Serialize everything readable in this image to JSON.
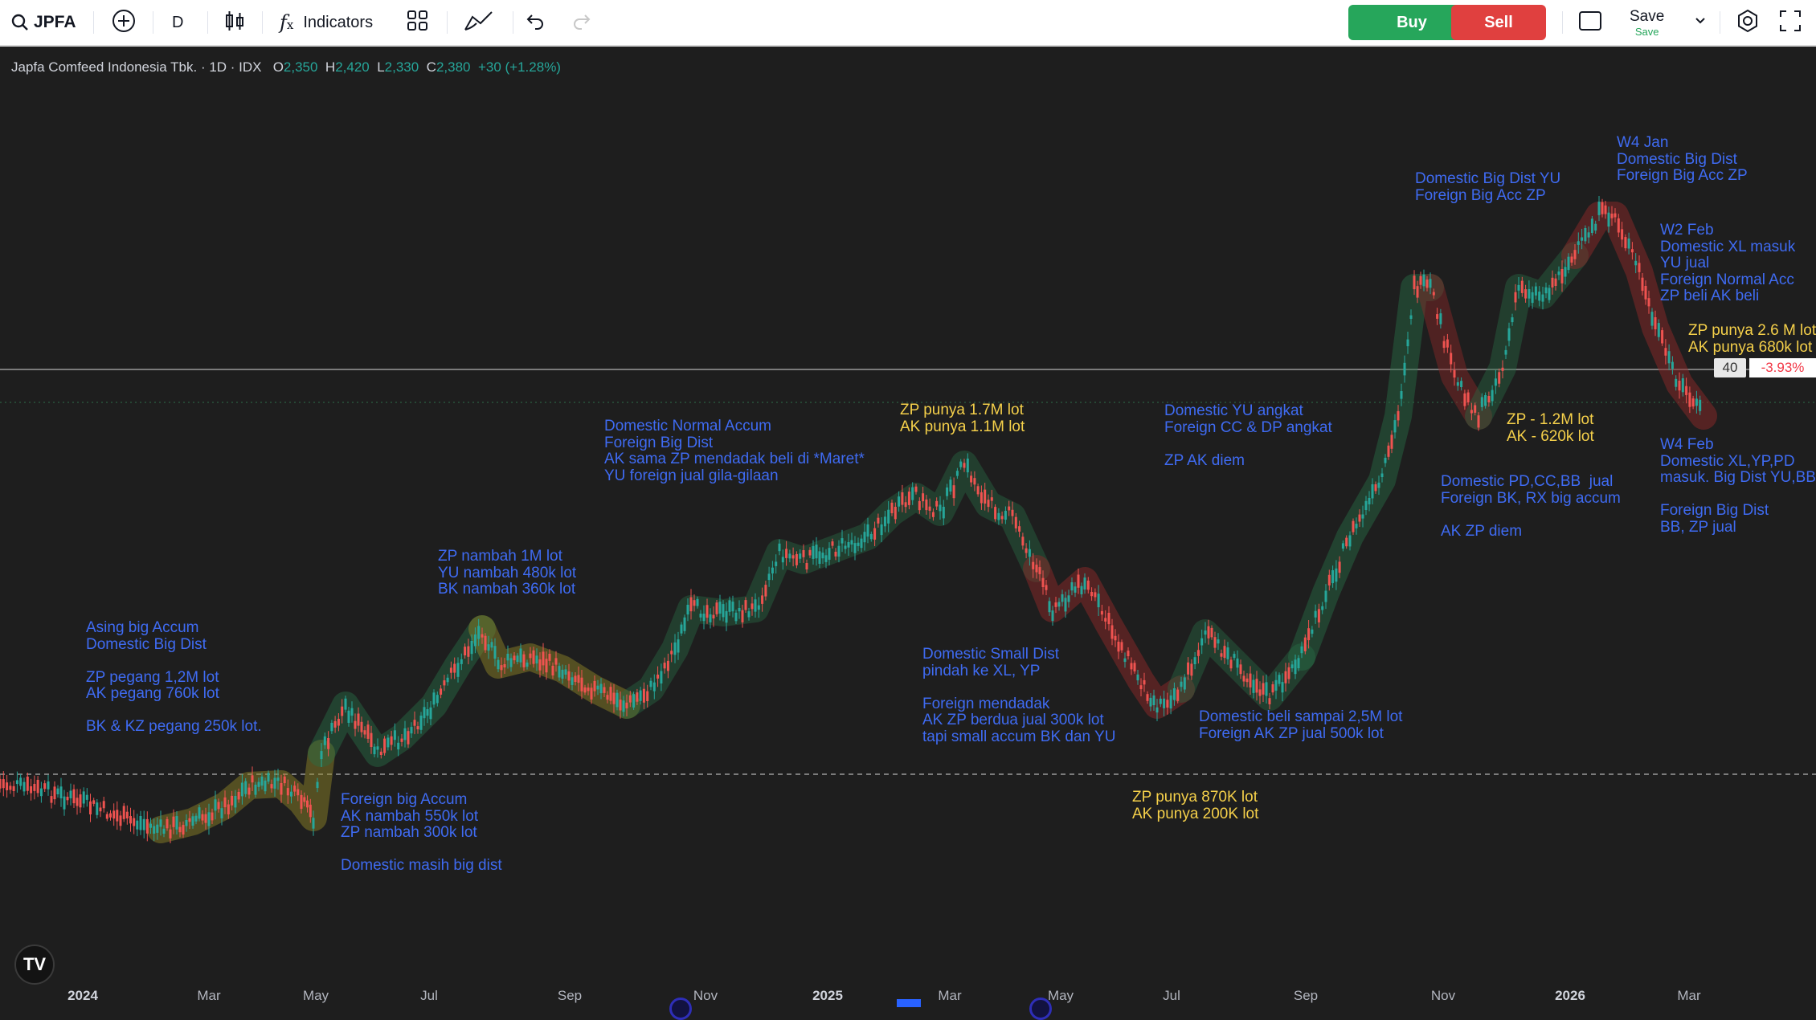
{
  "toolbar": {
    "symbol": "JPFA",
    "interval": "D",
    "indicators_label": "Indicators",
    "buy_label": "Buy",
    "sell_label": "Sell",
    "save_label": "Save",
    "save_sub": "Save",
    "icons": [
      "search-icon",
      "add-symbol-icon",
      "bar-style-icon",
      "fx-icon",
      "layout-icon",
      "drawing-icon",
      "undo-icon",
      "redo-icon",
      "layout-box-icon",
      "chevron-down-icon",
      "settings-icon",
      "fullscreen-icon"
    ],
    "colors": {
      "buy": "#26a65b",
      "sell": "#e0403f"
    }
  },
  "legend": {
    "title": "Japfa Comfeed Indonesia Tbk. · 1D · IDX",
    "o_label": "O",
    "o_value": "2,350",
    "h_label": "H",
    "h_value": "2,420",
    "l_label": "L",
    "l_value": "2,330",
    "c_label": "C",
    "c_value": "2,380",
    "change": "+30 (+1.28%)"
  },
  "price_line": {
    "tag": "40",
    "pct": "-3.93%"
  },
  "annotations": [
    {
      "text": "Asing big Accum\nDomestic Big Dist\n\nZP pegang 1,2M lot\nAK pegang 760k lot\n\nBK & KZ pegang 250k lot.",
      "color": "blue"
    },
    {
      "text": "Foreign big Accum\nAK nambah 550k lot\nZP nambah 300k lot\n\nDomestic masih big dist",
      "color": "blue"
    },
    {
      "text": "ZP nambah 1M lot\nYU nambah 480k lot\nBK nambah 360k lot",
      "color": "blue"
    },
    {
      "text": "Domestic Normal Accum\nForeign Big Dist\nAK sama ZP mendadak beli di *Maret*\nYU foreign jual gila-gilaan",
      "color": "blue"
    },
    {
      "text": "ZP punya 1.7M lot\nAK punya 1.1M lot",
      "color": "yellow"
    },
    {
      "text": "Domestic Small Dist\npindah ke XL, YP\n\nForeign mendadak\nAK ZP berdua jual 300k lot\ntapi small accum BK dan YU",
      "color": "blue"
    },
    {
      "text": "Domestic YU angkat\nForeign CC & DP angkat\n\nZP AK diem",
      "color": "blue"
    },
    {
      "text": "Domestic beli sampai 2,5M lot\nForeign AK ZP jual 500k lot",
      "color": "blue"
    },
    {
      "text": "ZP punya 870K lot\nAK punya 200K lot",
      "color": "yellow"
    },
    {
      "text": "Domestic Big Dist YU\nForeign Big Acc ZP",
      "color": "blue"
    },
    {
      "text": "Domestic PD,CC,BB  jual\nForeign BK, RX big accum\n\nAK ZP diem",
      "color": "blue"
    },
    {
      "text": "ZP - 1.2M lot\nAK - 620k lot",
      "color": "yellow"
    },
    {
      "text": "W4 Jan\nDomestic Big Dist\nForeign Big Acc ZP",
      "color": "blue"
    },
    {
      "text": "W2 Feb\nDomestic XL masuk\nYU jual\nForeign Normal Acc\nZP beli AK beli",
      "color": "blue"
    },
    {
      "text": "ZP punya 2.6 M lot\nAK punya 680k lot",
      "color": "yellow"
    },
    {
      "text": "W4 Feb\nDomestic XL,YP,PD\nmasuk. Big Dist YU,BB\n\nForeign Big Dist\nBB, ZP jual",
      "color": "blue"
    }
  ],
  "x_axis": [
    "2024",
    "Mar",
    "May",
    "Jul",
    "Sep",
    "Nov",
    "2025",
    "Mar",
    "May",
    "Jul",
    "Sep",
    "Nov",
    "2026",
    "Mar"
  ],
  "chart_data": {
    "type": "candlestick",
    "symbol": "JPFA",
    "interval": "1D",
    "last": {
      "open": 2350,
      "high": 2420,
      "low": 2330,
      "close": 2380,
      "change": 30,
      "change_pct": 1.28
    },
    "colors": {
      "up": "#26a69a",
      "down": "#ef5350"
    }
  }
}
